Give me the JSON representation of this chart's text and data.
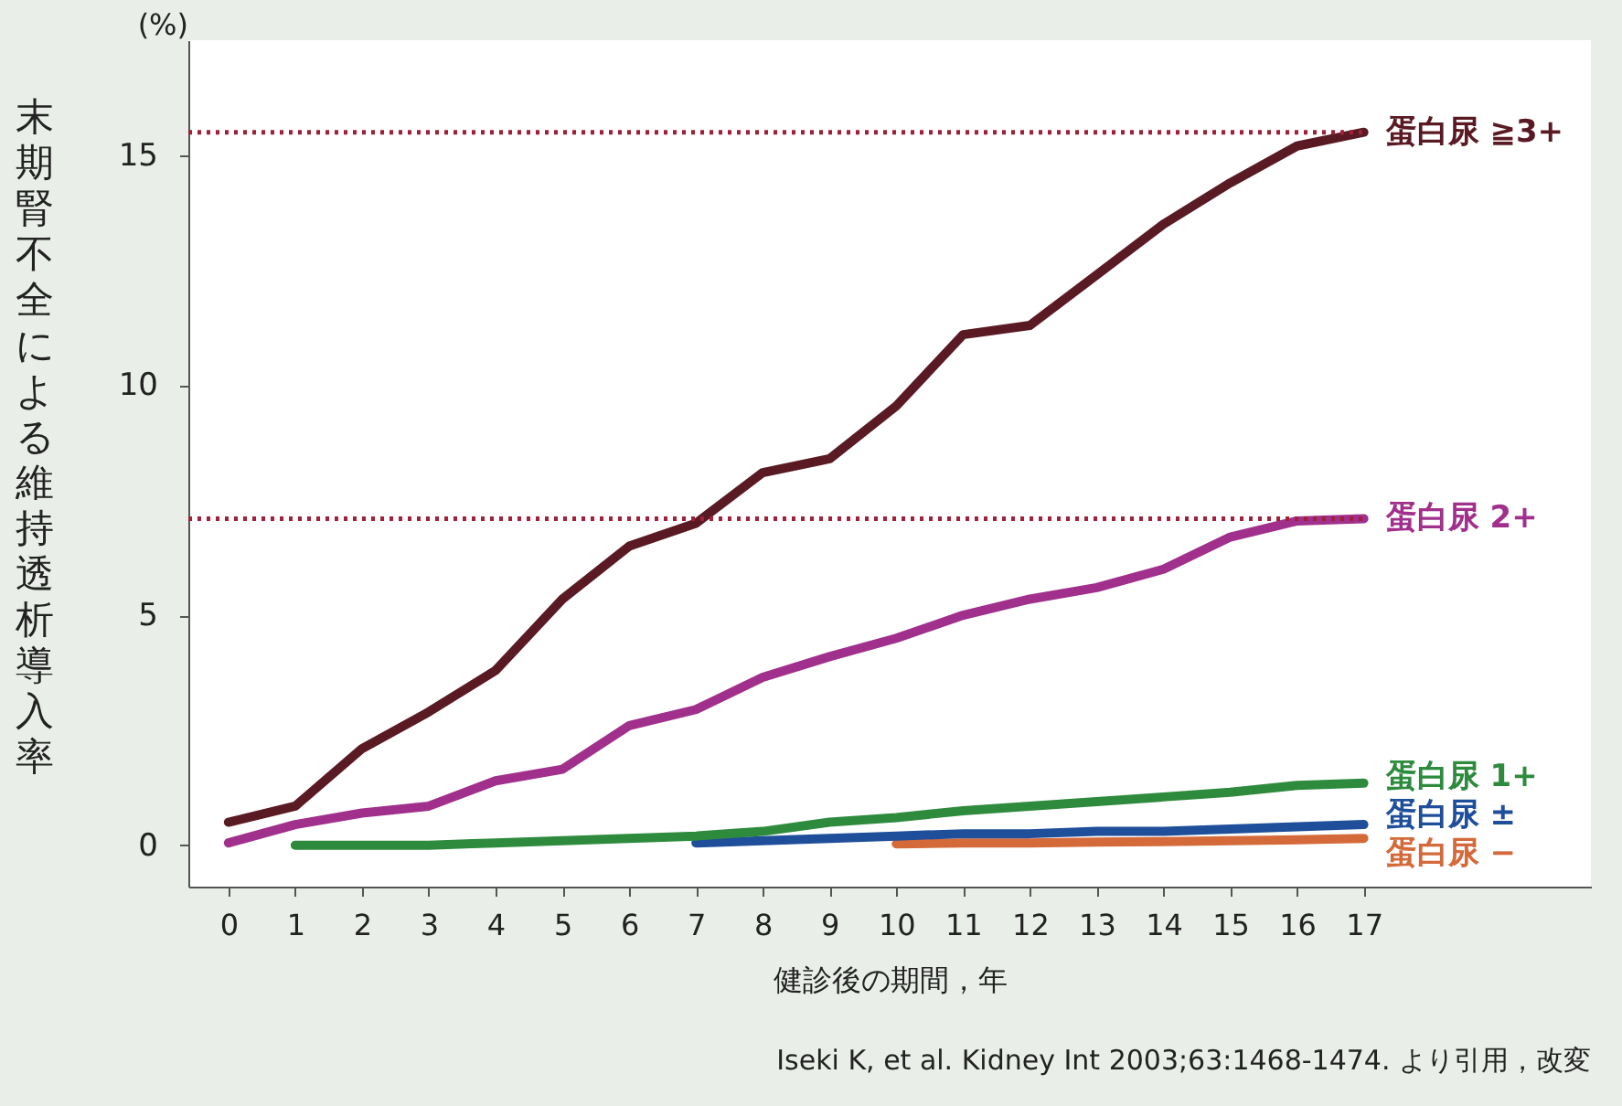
{
  "chart_data": {
    "type": "line",
    "ylabel": "末期腎不全による維持透析導入率",
    "xlabel": "健診後の期間，年",
    "annotations": [
      "(%)",
      "Iseki K, et al. Kidney Int 2003;63:1468-1474. より引用，改変"
    ],
    "x": [
      0,
      1,
      2,
      3,
      4,
      5,
      6,
      7,
      8,
      9,
      10,
      11,
      12,
      13,
      14,
      15,
      16,
      17
    ],
    "xlim": [
      -0.6,
      20.4
    ],
    "xticks": [
      0,
      1,
      2,
      3,
      4,
      5,
      6,
      7,
      8,
      9,
      10,
      11,
      12,
      13,
      14,
      15,
      16,
      17
    ],
    "ylim": [
      -0.9,
      17.5
    ],
    "yticks": [
      0,
      5,
      10,
      15
    ],
    "grid": false,
    "line_style": "solid",
    "ref_lines": [
      {
        "axis": "y",
        "value": 15.5,
        "color": "#a0203a",
        "line_style": "dotted"
      },
      {
        "axis": "y",
        "value": 7.1,
        "color": "#a0203a",
        "line_style": "dotted"
      }
    ],
    "series": [
      {
        "name": "蛋白尿 ≧3+",
        "color": "#5a1a24",
        "values": [
          0.5,
          0.85,
          2.1,
          2.9,
          3.8,
          5.35,
          6.5,
          7.0,
          8.1,
          8.4,
          9.55,
          11.1,
          11.3,
          12.4,
          13.5,
          14.4,
          15.2,
          15.5
        ]
      },
      {
        "name": "蛋白尿 2+",
        "color": "#a0308c",
        "values": [
          0.05,
          0.45,
          0.7,
          0.85,
          1.4,
          1.65,
          2.6,
          2.95,
          3.65,
          4.1,
          4.5,
          5.0,
          5.35,
          5.6,
          6.0,
          6.7,
          7.05,
          7.1
        ]
      },
      {
        "name": "蛋白尿 1+",
        "color": "#2e8b3e",
        "values": [
          null,
          0,
          0,
          0,
          0.05,
          0.1,
          0.15,
          0.2,
          0.3,
          0.5,
          0.6,
          0.75,
          0.85,
          0.95,
          1.05,
          1.15,
          1.3,
          1.35
        ]
      },
      {
        "name": "蛋白尿 ±",
        "color": "#1f4e9a",
        "values": [
          null,
          null,
          null,
          null,
          null,
          null,
          null,
          0.05,
          0.1,
          0.15,
          0.2,
          0.25,
          0.25,
          0.3,
          0.3,
          0.35,
          0.4,
          0.45
        ]
      },
      {
        "name": "蛋白尿 −",
        "color": "#d46a3a",
        "values": [
          null,
          null,
          null,
          null,
          null,
          null,
          null,
          null,
          null,
          null,
          0.03,
          0.05,
          0.05,
          0.07,
          0.08,
          0.1,
          0.12,
          0.15
        ]
      }
    ]
  }
}
